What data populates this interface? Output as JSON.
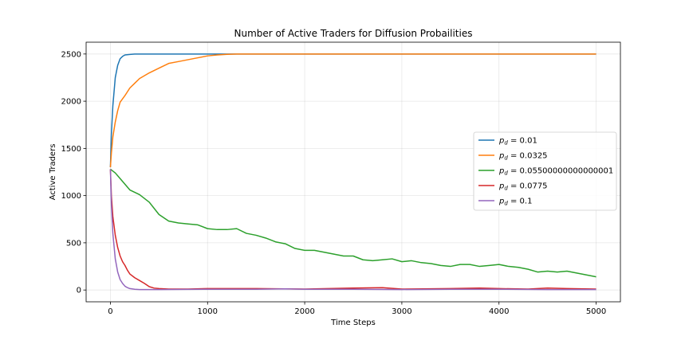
{
  "chart_data": {
    "type": "line",
    "title": "Number of Active Traders for Diffusion Probailities",
    "xlabel": "Time Steps",
    "ylabel": "Active Traders",
    "xlim": [
      -250,
      5250
    ],
    "ylim": [
      -125,
      2625
    ],
    "xticks": [
      0,
      1000,
      2000,
      3000,
      4000,
      5000
    ],
    "yticks": [
      0,
      500,
      1000,
      1500,
      2000,
      2500
    ],
    "grid": true,
    "legend_position": "center-right",
    "series": [
      {
        "name": "0.01",
        "color": "#1f77b4",
        "x": [
          0,
          10,
          25,
          50,
          75,
          100,
          125,
          150,
          200,
          250,
          300,
          400,
          600,
          1000,
          2000,
          3000,
          4000,
          5000
        ],
        "y": [
          1300,
          1650,
          1950,
          2250,
          2380,
          2450,
          2475,
          2490,
          2495,
          2500,
          2500,
          2500,
          2500,
          2500,
          2500,
          2500,
          2500,
          2500
        ]
      },
      {
        "name": "0.0325",
        "color": "#ff7f0e",
        "x": [
          0,
          10,
          25,
          50,
          75,
          100,
          150,
          200,
          250,
          300,
          400,
          500,
          600,
          700,
          800,
          900,
          1000,
          1100,
          1200,
          1300,
          1500,
          2000,
          3000,
          4000,
          5000
        ],
        "y": [
          1300,
          1450,
          1620,
          1780,
          1900,
          1990,
          2060,
          2140,
          2190,
          2240,
          2300,
          2350,
          2400,
          2420,
          2440,
          2460,
          2480,
          2490,
          2496,
          2500,
          2500,
          2500,
          2500,
          2500,
          2500
        ]
      },
      {
        "name": "0.05500000000000001",
        "color": "#2ca02c",
        "x": [
          0,
          50,
          100,
          200,
          300,
          400,
          500,
          600,
          700,
          800,
          900,
          1000,
          1100,
          1200,
          1300,
          1400,
          1500,
          1600,
          1700,
          1800,
          1900,
          2000,
          2100,
          2200,
          2300,
          2400,
          2500,
          2600,
          2700,
          2800,
          2900,
          3000,
          3100,
          3200,
          3300,
          3400,
          3500,
          3600,
          3700,
          3800,
          3900,
          4000,
          4100,
          4200,
          4300,
          4400,
          4500,
          4600,
          4700,
          4800,
          4900,
          5000
        ],
        "y": [
          1280,
          1240,
          1180,
          1060,
          1010,
          930,
          800,
          730,
          710,
          700,
          690,
          650,
          640,
          640,
          650,
          600,
          580,
          550,
          510,
          490,
          440,
          420,
          420,
          400,
          380,
          360,
          360,
          320,
          310,
          320,
          330,
          300,
          310,
          290,
          280,
          260,
          250,
          270,
          270,
          250,
          260,
          270,
          250,
          240,
          220,
          190,
          200,
          190,
          200,
          180,
          160,
          140
        ]
      },
      {
        "name": "0.0775",
        "color": "#d62728",
        "x": [
          0,
          10,
          25,
          50,
          75,
          100,
          125,
          150,
          175,
          200,
          250,
          300,
          350,
          400,
          450,
          500,
          600,
          800,
          1000,
          1500,
          2000,
          2500,
          2800,
          3000,
          3500,
          3800,
          4000,
          4300,
          4500,
          4700,
          5000
        ],
        "y": [
          1280,
          1000,
          780,
          580,
          450,
          360,
          300,
          260,
          210,
          170,
          130,
          100,
          70,
          35,
          20,
          15,
          10,
          10,
          15,
          15,
          10,
          20,
          25,
          10,
          15,
          20,
          15,
          10,
          20,
          15,
          10
        ]
      },
      {
        "name": "0.1",
        "color": "#9467bd",
        "x": [
          0,
          10,
          25,
          50,
          75,
          100,
          125,
          150,
          175,
          200,
          250,
          300,
          400,
          500,
          1000,
          1500,
          1800,
          2000,
          2500,
          3000,
          3500,
          4000,
          4500,
          5000
        ],
        "y": [
          1280,
          900,
          600,
          330,
          190,
          110,
          70,
          40,
          25,
          15,
          8,
          5,
          5,
          5,
          8,
          8,
          12,
          8,
          8,
          5,
          8,
          8,
          5,
          5
        ]
      }
    ]
  }
}
